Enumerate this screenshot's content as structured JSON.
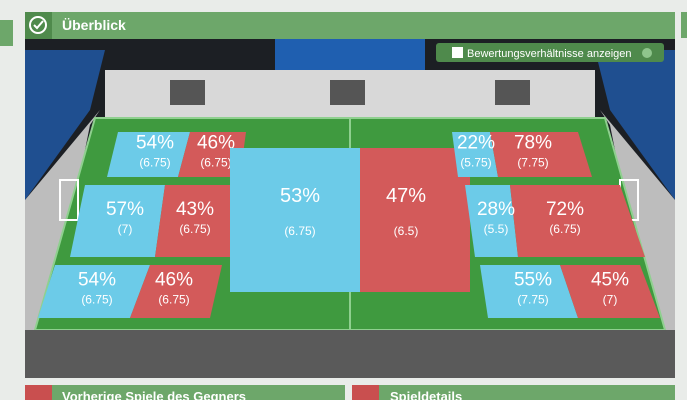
{
  "header": {
    "title": "Überblick",
    "toggle_label": "Bewertungsverhältnisse anzeigen"
  },
  "zones": [
    {
      "home": {
        "pct": "54%",
        "rating": "(6.75)"
      },
      "away": {
        "pct": "46%",
        "rating": "(6.75)"
      }
    },
    {
      "home": {
        "pct": "57%",
        "rating": "(7)"
      },
      "away": {
        "pct": "43%",
        "rating": "(6.75)"
      }
    },
    {
      "home": {
        "pct": "54%",
        "rating": "(6.75)"
      },
      "away": {
        "pct": "46%",
        "rating": "(6.75)"
      }
    },
    {
      "home": {
        "pct": "53%",
        "rating": "(6.75)"
      },
      "away": {
        "pct": "47%",
        "rating": "(6.5)"
      }
    },
    {
      "home": {
        "pct": "22%",
        "rating": "(5.75)"
      },
      "away": {
        "pct": "78%",
        "rating": "(7.75)"
      }
    },
    {
      "home": {
        "pct": "28%",
        "rating": "(5.5)"
      },
      "away": {
        "pct": "72%",
        "rating": "(6.75)"
      }
    },
    {
      "home": {
        "pct": "55%",
        "rating": "(7.75)"
      },
      "away": {
        "pct": "45%",
        "rating": "(7)"
      }
    }
  ],
  "panels": [
    {
      "title": "Vorherige Spiele des Gegners"
    },
    {
      "title": "Spieldetails"
    }
  ]
}
